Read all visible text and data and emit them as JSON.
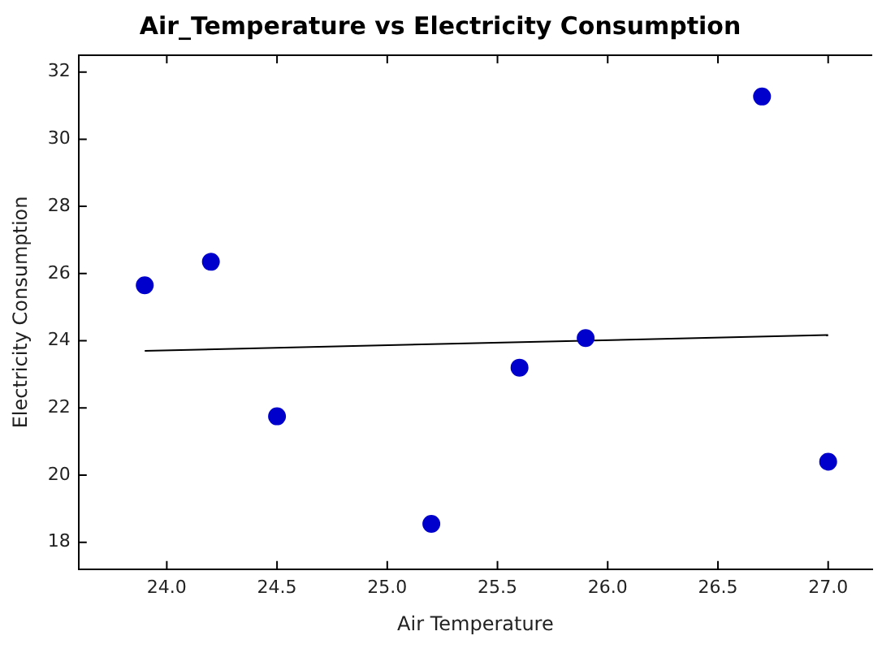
{
  "chart_data": {
    "type": "scatter",
    "title": "Air_Temperature vs Electricity Consumption",
    "xlabel": "Air Temperature",
    "ylabel": "Electricity Consumption",
    "xlim": [
      23.6,
      27.2
    ],
    "xticks": [
      {
        "value": 24,
        "label": "24.0"
      },
      {
        "value": 24.5,
        "label": "24.5"
      },
      {
        "value": 25,
        "label": "25.0"
      },
      {
        "value": 25.5,
        "label": "25.5"
      },
      {
        "value": 26,
        "label": "26.0"
      },
      {
        "value": 26.5,
        "label": "26.5"
      },
      {
        "value": 27,
        "label": "27.0"
      }
    ],
    "ylim": [
      17.2,
      32.5
    ],
    "yticks": [
      18,
      20,
      22,
      24,
      26,
      28,
      30,
      32
    ],
    "grid": false,
    "legend": false,
    "marker": "circle",
    "series": [
      {
        "type": "scatter",
        "color": "#0000cc",
        "x": [
          23.9,
          24.2,
          24.5,
          25.2,
          25.6,
          25.9,
          26.7,
          27.0
        ],
        "values": [
          25.65,
          26.35,
          21.75,
          18.55,
          23.2,
          24.08,
          31.27,
          20.4
        ]
      },
      {
        "type": "line",
        "color": "#000000",
        "x": [
          23.9,
          27.0
        ],
        "values": [
          23.7,
          24.17
        ],
        "marker": "none"
      }
    ]
  }
}
